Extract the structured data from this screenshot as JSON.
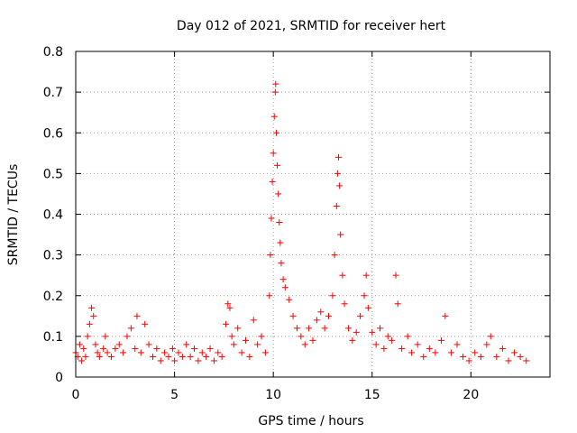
{
  "chart_data": {
    "type": "scatter",
    "title": "Day 012 of 2021, SRMTID for receiver hert",
    "xlabel": "GPS time / hours",
    "ylabel": "SRMTID / TECUs",
    "xlim": [
      0,
      24
    ],
    "ylim": [
      0,
      0.8
    ],
    "x_ticks": [
      0,
      5,
      10,
      15,
      20
    ],
    "x_tick_labels": [
      "0",
      "5",
      "10",
      "15",
      "20"
    ],
    "y_ticks": [
      0,
      0.1,
      0.2,
      0.3,
      0.4,
      0.5,
      0.6,
      0.7,
      0.8
    ],
    "y_tick_labels": [
      "0",
      "0.1",
      "0.2",
      "0.3",
      "0.4",
      "0.5",
      "0.6",
      "0.7",
      "0.8"
    ],
    "grid": true,
    "marker": "+",
    "marker_color": "#ff0000",
    "series": [
      {
        "name": "SRMTID",
        "points": [
          [
            0.0,
            0.06
          ],
          [
            0.1,
            0.05
          ],
          [
            0.2,
            0.08
          ],
          [
            0.3,
            0.04
          ],
          [
            0.4,
            0.07
          ],
          [
            0.5,
            0.05
          ],
          [
            0.6,
            0.1
          ],
          [
            0.7,
            0.13
          ],
          [
            0.8,
            0.17
          ],
          [
            0.9,
            0.15
          ],
          [
            1.0,
            0.08
          ],
          [
            1.1,
            0.06
          ],
          [
            1.2,
            0.05
          ],
          [
            1.4,
            0.07
          ],
          [
            1.5,
            0.1
          ],
          [
            1.6,
            0.06
          ],
          [
            1.8,
            0.05
          ],
          [
            2.0,
            0.07
          ],
          [
            2.2,
            0.08
          ],
          [
            2.4,
            0.06
          ],
          [
            2.6,
            0.1
          ],
          [
            2.8,
            0.12
          ],
          [
            3.0,
            0.07
          ],
          [
            3.1,
            0.15
          ],
          [
            3.3,
            0.06
          ],
          [
            3.5,
            0.13
          ],
          [
            3.7,
            0.08
          ],
          [
            3.9,
            0.05
          ],
          [
            4.1,
            0.07
          ],
          [
            4.3,
            0.04
          ],
          [
            4.5,
            0.06
          ],
          [
            4.7,
            0.05
          ],
          [
            4.9,
            0.07
          ],
          [
            5.0,
            0.04
          ],
          [
            5.2,
            0.06
          ],
          [
            5.4,
            0.05
          ],
          [
            5.6,
            0.08
          ],
          [
            5.8,
            0.05
          ],
          [
            6.0,
            0.07
          ],
          [
            6.2,
            0.04
          ],
          [
            6.4,
            0.06
          ],
          [
            6.6,
            0.05
          ],
          [
            6.8,
            0.07
          ],
          [
            7.0,
            0.04
          ],
          [
            7.2,
            0.06
          ],
          [
            7.4,
            0.05
          ],
          [
            7.6,
            0.13
          ],
          [
            7.7,
            0.18
          ],
          [
            7.8,
            0.17
          ],
          [
            7.9,
            0.1
          ],
          [
            8.0,
            0.08
          ],
          [
            8.2,
            0.12
          ],
          [
            8.4,
            0.06
          ],
          [
            8.6,
            0.09
          ],
          [
            8.8,
            0.05
          ],
          [
            9.0,
            0.14
          ],
          [
            9.2,
            0.08
          ],
          [
            9.4,
            0.1
          ],
          [
            9.6,
            0.06
          ],
          [
            9.8,
            0.2
          ],
          [
            9.85,
            0.3
          ],
          [
            9.9,
            0.39
          ],
          [
            9.95,
            0.48
          ],
          [
            10.0,
            0.55
          ],
          [
            10.05,
            0.64
          ],
          [
            10.1,
            0.7
          ],
          [
            10.12,
            0.72
          ],
          [
            10.15,
            0.6
          ],
          [
            10.2,
            0.52
          ],
          [
            10.25,
            0.45
          ],
          [
            10.3,
            0.38
          ],
          [
            10.35,
            0.33
          ],
          [
            10.4,
            0.28
          ],
          [
            10.5,
            0.24
          ],
          [
            10.6,
            0.22
          ],
          [
            10.8,
            0.19
          ],
          [
            11.0,
            0.15
          ],
          [
            11.2,
            0.12
          ],
          [
            11.4,
            0.1
          ],
          [
            11.6,
            0.08
          ],
          [
            11.8,
            0.12
          ],
          [
            12.0,
            0.09
          ],
          [
            12.2,
            0.14
          ],
          [
            12.4,
            0.16
          ],
          [
            12.6,
            0.12
          ],
          [
            12.8,
            0.15
          ],
          [
            13.0,
            0.2
          ],
          [
            13.1,
            0.3
          ],
          [
            13.2,
            0.42
          ],
          [
            13.25,
            0.5
          ],
          [
            13.3,
            0.54
          ],
          [
            13.35,
            0.47
          ],
          [
            13.4,
            0.35
          ],
          [
            13.5,
            0.25
          ],
          [
            13.6,
            0.18
          ],
          [
            13.8,
            0.12
          ],
          [
            14.0,
            0.09
          ],
          [
            14.2,
            0.11
          ],
          [
            14.4,
            0.15
          ],
          [
            14.6,
            0.2
          ],
          [
            14.7,
            0.25
          ],
          [
            14.8,
            0.17
          ],
          [
            15.0,
            0.11
          ],
          [
            15.2,
            0.08
          ],
          [
            15.4,
            0.12
          ],
          [
            15.6,
            0.07
          ],
          [
            15.8,
            0.1
          ],
          [
            16.0,
            0.09
          ],
          [
            16.2,
            0.25
          ],
          [
            16.3,
            0.18
          ],
          [
            16.5,
            0.07
          ],
          [
            16.8,
            0.1
          ],
          [
            17.0,
            0.06
          ],
          [
            17.3,
            0.08
          ],
          [
            17.6,
            0.05
          ],
          [
            17.9,
            0.07
          ],
          [
            18.2,
            0.06
          ],
          [
            18.5,
            0.09
          ],
          [
            18.7,
            0.15
          ],
          [
            19.0,
            0.06
          ],
          [
            19.3,
            0.08
          ],
          [
            19.6,
            0.05
          ],
          [
            19.9,
            0.04
          ],
          [
            20.2,
            0.06
          ],
          [
            20.5,
            0.05
          ],
          [
            20.8,
            0.08
          ],
          [
            21.0,
            0.1
          ],
          [
            21.3,
            0.05
          ],
          [
            21.6,
            0.07
          ],
          [
            21.9,
            0.04
          ],
          [
            22.2,
            0.06
          ],
          [
            22.5,
            0.05
          ],
          [
            22.8,
            0.04
          ]
        ]
      }
    ]
  }
}
